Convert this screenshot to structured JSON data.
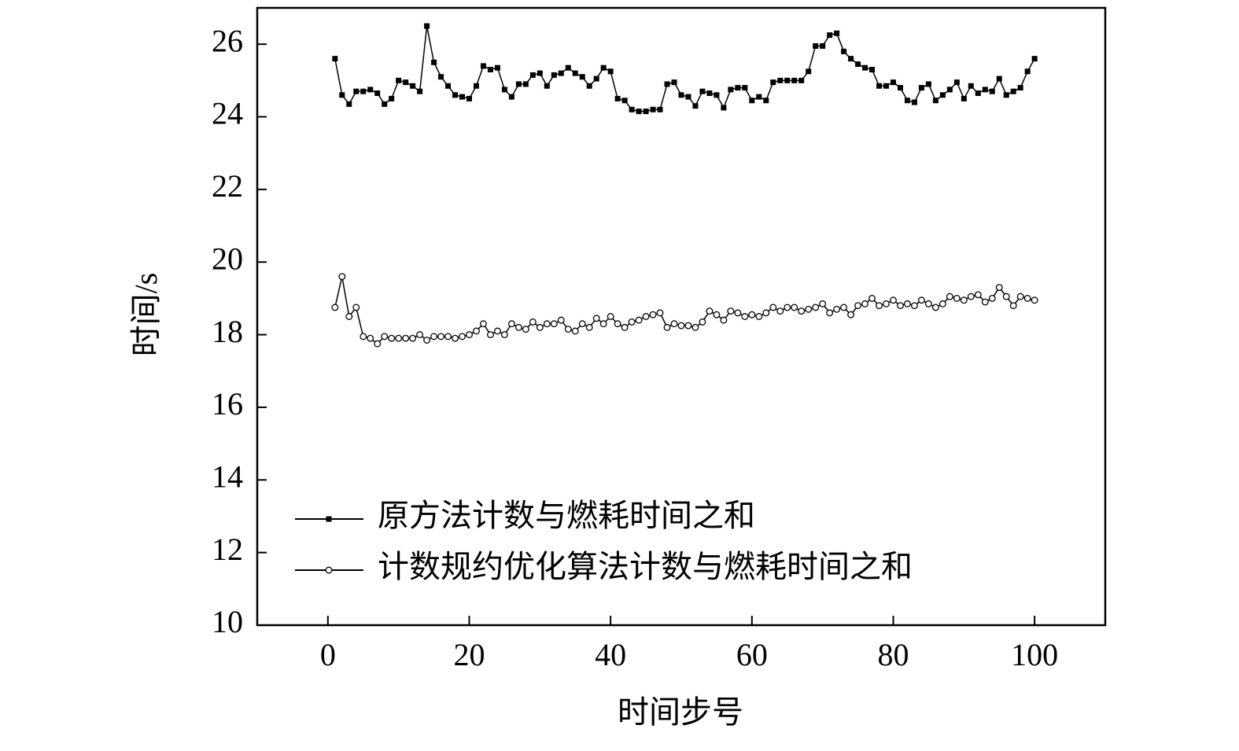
{
  "chart_data": {
    "type": "line",
    "x_label": "时间步号",
    "y_label": "时间/s",
    "x": [
      1,
      2,
      3,
      4,
      5,
      6,
      7,
      8,
      9,
      10,
      11,
      12,
      13,
      14,
      15,
      16,
      17,
      18,
      19,
      20,
      21,
      22,
      23,
      24,
      25,
      26,
      27,
      28,
      29,
      30,
      31,
      32,
      33,
      34,
      35,
      36,
      37,
      38,
      39,
      40,
      41,
      42,
      43,
      44,
      45,
      46,
      47,
      48,
      49,
      50,
      51,
      52,
      53,
      54,
      55,
      56,
      57,
      58,
      59,
      60,
      61,
      62,
      63,
      64,
      65,
      66,
      67,
      68,
      69,
      70,
      71,
      72,
      73,
      74,
      75,
      76,
      77,
      78,
      79,
      80,
      81,
      82,
      83,
      84,
      85,
      86,
      87,
      88,
      89,
      90,
      91,
      92,
      93,
      94,
      95,
      96,
      97,
      98,
      99,
      100
    ],
    "series": [
      {
        "name": "原方法计数与燃耗时间之和",
        "color": "#000000",
        "marker": "square",
        "values": [
          25.6,
          24.6,
          24.35,
          24.7,
          24.7,
          24.75,
          24.65,
          24.35,
          24.5,
          25.0,
          24.95,
          24.85,
          24.7,
          26.5,
          25.5,
          25.1,
          24.85,
          24.6,
          24.55,
          24.5,
          24.85,
          25.4,
          25.3,
          25.35,
          24.75,
          24.55,
          24.9,
          24.9,
          25.15,
          25.2,
          24.85,
          25.15,
          25.2,
          25.35,
          25.2,
          25.1,
          24.85,
          25.05,
          25.35,
          25.25,
          24.5,
          24.45,
          24.2,
          24.15,
          24.15,
          24.2,
          24.2,
          24.9,
          24.95,
          24.6,
          24.55,
          24.3,
          24.7,
          24.65,
          24.6,
          24.25,
          24.75,
          24.8,
          24.8,
          24.45,
          24.55,
          24.45,
          24.95,
          25.0,
          25.0,
          25.0,
          25.0,
          25.25,
          25.95,
          25.95,
          26.25,
          26.3,
          25.8,
          25.6,
          25.45,
          25.35,
          25.3,
          24.85,
          24.85,
          24.95,
          24.8,
          24.45,
          24.4,
          24.8,
          24.9,
          24.45,
          24.6,
          24.75,
          24.95,
          24.5,
          24.85,
          24.65,
          24.75,
          24.7,
          25.05,
          24.6,
          24.7,
          24.8,
          25.25,
          25.6
        ]
      },
      {
        "name": "计数规约优化算法计数与燃耗时间之和",
        "color": "#000000",
        "marker": "circle",
        "values": [
          18.75,
          19.6,
          18.5,
          18.75,
          17.95,
          17.9,
          17.75,
          17.95,
          17.9,
          17.9,
          17.9,
          17.9,
          18.0,
          17.85,
          17.95,
          17.95,
          17.95,
          17.9,
          17.95,
          18.0,
          18.1,
          18.3,
          18.0,
          18.1,
          18.0,
          18.3,
          18.2,
          18.15,
          18.35,
          18.2,
          18.3,
          18.3,
          18.4,
          18.15,
          18.1,
          18.3,
          18.2,
          18.45,
          18.3,
          18.5,
          18.3,
          18.2,
          18.35,
          18.4,
          18.5,
          18.55,
          18.6,
          18.2,
          18.3,
          18.25,
          18.25,
          18.2,
          18.35,
          18.65,
          18.55,
          18.4,
          18.65,
          18.6,
          18.5,
          18.55,
          18.5,
          18.6,
          18.75,
          18.65,
          18.75,
          18.75,
          18.65,
          18.7,
          18.75,
          18.85,
          18.6,
          18.7,
          18.75,
          18.55,
          18.8,
          18.85,
          19.0,
          18.8,
          18.85,
          18.95,
          18.8,
          18.85,
          18.8,
          18.95,
          18.85,
          18.75,
          18.85,
          19.05,
          19.0,
          18.95,
          19.05,
          19.1,
          18.9,
          19.0,
          19.3,
          19.05,
          18.8,
          19.05,
          19.0,
          18.95
        ]
      }
    ],
    "xlim": [
      -10,
      110
    ],
    "xticks": [
      0,
      20,
      40,
      60,
      80,
      100
    ],
    "ylim": [
      10,
      27
    ],
    "yticks": [
      10,
      12,
      14,
      16,
      18,
      20,
      22,
      24,
      26
    ],
    "legend": "lower-left"
  }
}
